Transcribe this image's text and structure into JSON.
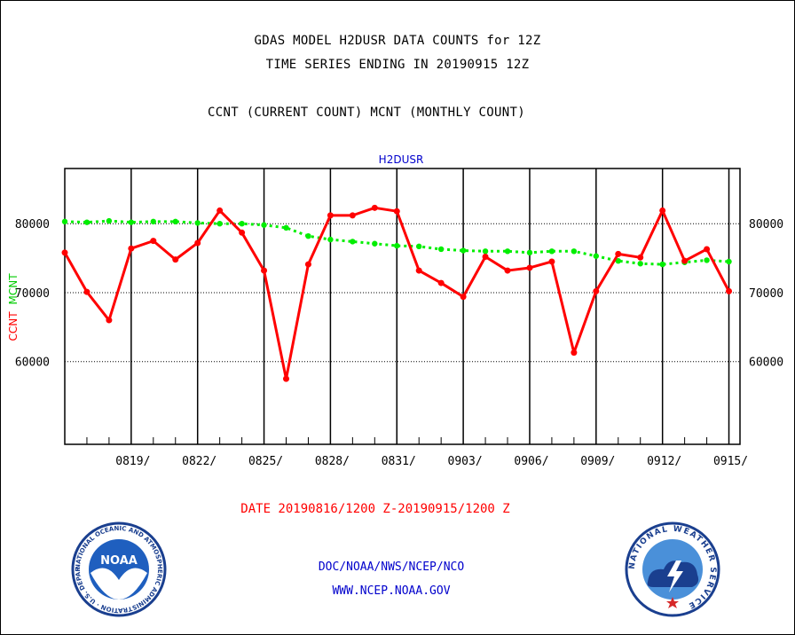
{
  "header": {
    "title_line1": "GDAS MODEL H2DUSR DATA COUNTS for 12Z",
    "title_line2": "TIME SERIES ENDING IN 20190915 12Z",
    "subtitle": "CCNT (CURRENT COUNT) MCNT (MONTHLY COUNT)"
  },
  "footer": {
    "date_range": "DATE 20190816/1200 Z-20190915/1200 Z",
    "org": "DOC/NOAA/NWS/NCEP/NCO",
    "url": "WWW.NCEP.NOAA.GOV"
  },
  "logos": {
    "left": {
      "label": "NOAA",
      "ring_text": "NATIONAL OCEANIC AND ATMOSPHERIC ADMINISTRATION · U.S. DEPARTMENT OF COMMERCE"
    },
    "right": {
      "ring_text": "NATIONAL WEATHER SERVICE"
    }
  },
  "chart_data": {
    "type": "line",
    "title": "H2DUSR",
    "ylabel_left": "CCNT",
    "ylabel_right": "MCNT",
    "x_tick_labels": [
      "0819/",
      "0822/",
      "0825/",
      "0828/",
      "0831/",
      "0903/",
      "0906/",
      "0909/",
      "0912/",
      "0915/"
    ],
    "x_tick_day_index": [
      3,
      6,
      9,
      12,
      15,
      18,
      21,
      24,
      27,
      30
    ],
    "xlim": [
      0,
      30.5
    ],
    "ylim": [
      48000,
      88000
    ],
    "y_ticks": [
      60000,
      70000,
      80000
    ],
    "y_tick_labels": [
      "60000",
      "70000",
      "80000"
    ],
    "grid": "horizontal dotted at y ticks, vertical solid at x ticks",
    "colors": {
      "ccnt": "#ff0000",
      "mcnt": "#00ee00",
      "title": "#0000cc",
      "axis": "#000000"
    },
    "series": [
      {
        "name": "CCNT",
        "color": "#ff0000",
        "values": [
          75800,
          70100,
          66000,
          76400,
          77500,
          74800,
          77200,
          81900,
          78700,
          73200,
          57500,
          74100,
          81200,
          81200,
          82300,
          81800,
          73200,
          71400,
          69400,
          75200,
          73200,
          73600,
          74500,
          61300,
          70200,
          75600,
          75100,
          81900,
          74600,
          76300,
          70200
        ]
      },
      {
        "name": "MCNT",
        "color": "#00ee00",
        "values": [
          80300,
          80200,
          80400,
          80200,
          80300,
          80300,
          80100,
          80000,
          80000,
          79800,
          79400,
          78200,
          77700,
          77400,
          77100,
          76800,
          76700,
          76300,
          76100,
          76000,
          76000,
          75800,
          76000,
          76000,
          75300,
          74600,
          74200,
          74100,
          74400,
          74700,
          74500
        ]
      }
    ]
  }
}
